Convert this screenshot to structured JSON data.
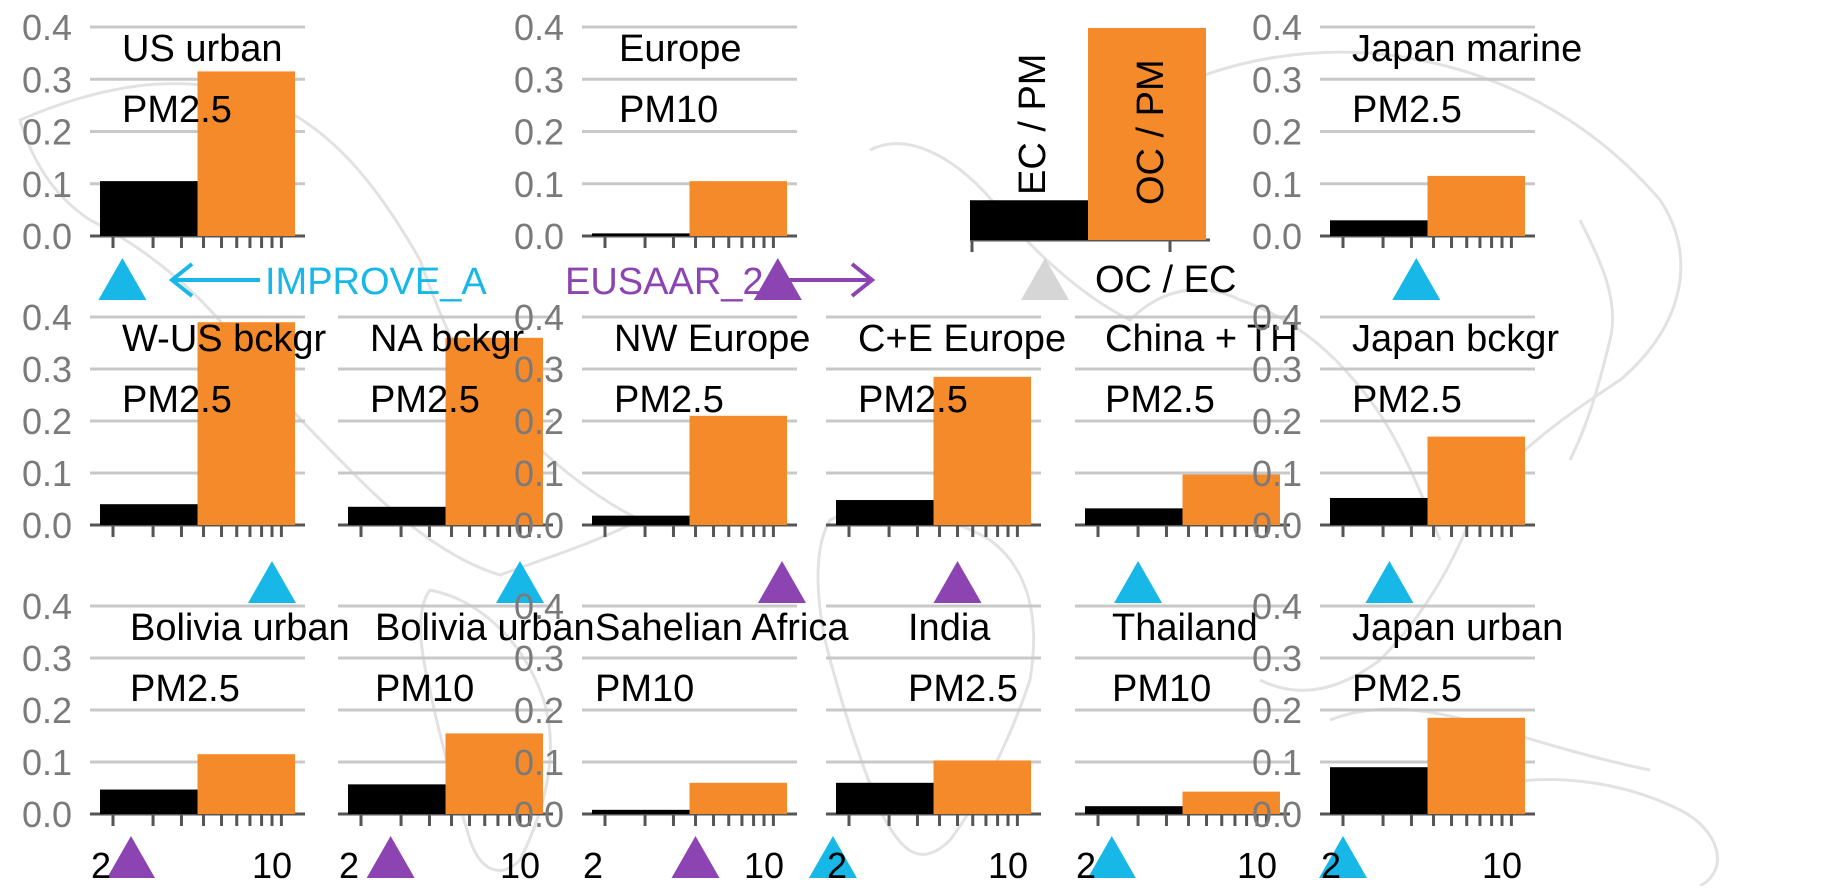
{
  "chart_data": {
    "type": "bar",
    "series_names": [
      "EC / PM",
      "OC / PM"
    ],
    "axis_label": "OC / EC",
    "ylim": [
      0,
      0.4
    ],
    "y_ticks": [
      "0.0",
      "0.1",
      "0.2",
      "0.3",
      "0.4"
    ],
    "x_ticks_bottom": [
      "2",
      "10"
    ],
    "grid": true,
    "colors": {
      "ec": "#000000",
      "oc": "#f58a2b",
      "grid": "#c8c8c8",
      "improve": "#17b8e8",
      "eusaar": "#8c44b2",
      "legend_marker": "#d6d6d6"
    },
    "protocols": [
      {
        "name": "IMPROVE_A",
        "color": "#17b8e8"
      },
      {
        "name": "EUSAAR_2",
        "color": "#8c44b2"
      }
    ],
    "legend_panel": {
      "ec": 0.075,
      "oc": 0.4,
      "ec_label": "EC / PM",
      "oc_label": "OC / PM",
      "ratio_label": "OC / EC"
    },
    "panels": [
      {
        "region": "US urban",
        "pm": "PM2.5",
        "ec": 0.105,
        "oc": 0.315,
        "protocol": "IMPROVE_A",
        "oc_ec": 2.2
      },
      {
        "region": "Europe",
        "pm": "PM10",
        "ec": 0.005,
        "oc": 0.105,
        "protocol": "EUSAAR_2",
        "oc_ec": 11.5
      },
      {
        "region": "Japan marine",
        "pm": "PM2.5",
        "ec": 0.03,
        "oc": 0.115,
        "protocol": "IMPROVE_A",
        "oc_ec": 4.2
      },
      {
        "region": "W-US bckgr",
        "pm": "PM2.5",
        "ec": 0.04,
        "oc": 0.39,
        "protocol": "IMPROVE_A",
        "oc_ec": 10
      },
      {
        "region": "NA bckgr",
        "pm": "PM2.5",
        "ec": 0.035,
        "oc": 0.36,
        "protocol": "IMPROVE_A",
        "oc_ec": 10
      },
      {
        "region": "NW Europe",
        "pm": "PM2.5",
        "ec": 0.018,
        "oc": 0.21,
        "protocol": "EUSAAR_2",
        "oc_ec": 12
      },
      {
        "region": "C+E Europe",
        "pm": "PM2.5",
        "ec": 0.048,
        "oc": 0.285,
        "protocol": "EUSAAR_2",
        "oc_ec": 6
      },
      {
        "region": "China + TH",
        "pm": "PM2.5",
        "ec": 0.032,
        "oc": 0.097,
        "protocol": "IMPROVE_A",
        "oc_ec": 3
      },
      {
        "region": "Japan bckgr",
        "pm": "PM2.5",
        "ec": 0.052,
        "oc": 0.17,
        "protocol": "IMPROVE_A",
        "oc_ec": 3.2
      },
      {
        "region": "Bolivia urban",
        "pm": "PM2.5",
        "ec": 0.047,
        "oc": 0.115,
        "protocol": "EUSAAR_2",
        "oc_ec": 2.4
      },
      {
        "region": "Bolivia urban",
        "pm": "PM10",
        "ec": 0.057,
        "oc": 0.155,
        "protocol": "EUSAAR_2",
        "oc_ec": 2.7
      },
      {
        "region": "Sahelian Africa",
        "pm": "PM10",
        "ec": 0.008,
        "oc": 0.06,
        "protocol": "EUSAAR_2",
        "oc_ec": 5
      },
      {
        "region": "India",
        "pm": "PM2.5",
        "ec": 0.06,
        "oc": 0.103,
        "protocol": "IMPROVE_A",
        "oc_ec": 1.7
      },
      {
        "region": "Thailand",
        "pm": "PM10",
        "ec": 0.015,
        "oc": 0.043,
        "protocol": "IMPROVE_A",
        "oc_ec": 2.3
      },
      {
        "region": "Japan urban",
        "pm": "PM2.5",
        "ec": 0.09,
        "oc": 0.185,
        "protocol": "IMPROVE_A",
        "oc_ec": 2
      }
    ]
  }
}
